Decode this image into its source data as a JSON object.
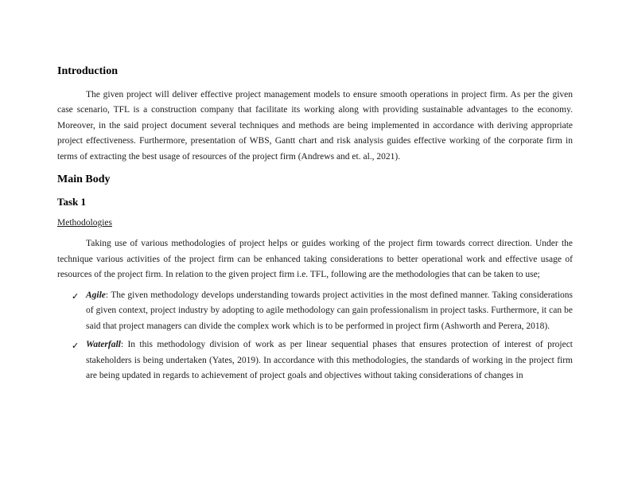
{
  "document": {
    "introduction": {
      "heading": "Introduction",
      "body": "The given project will deliver effective project management models to ensure smooth operations in project firm. As per the given case scenario, TFL is a construction company that facilitate its working along with providing sustainable advantages to the economy. Moreover, in the said project document several techniques and methods are being implemented in accordance with deriving appropriate project effectiveness. Furthermore, presentation of WBS, Gantt chart and risk analysis guides effective working of the corporate firm in terms of extracting the best usage of resources of the project firm (Andrews and et. al., 2021)."
    },
    "main_body": {
      "heading": "Main Body"
    },
    "task1": {
      "heading": "Task 1",
      "methodologies": {
        "title": "Methodologies",
        "intro": "Taking use of various methodologies of project helps or guides working of the project firm towards correct direction. Under the technique various activities of the project firm can be enhanced taking considerations to better operational work and effective usage of resources of the project firm. In relation to the given project firm i.e. TFL, following are the methodologies that can be taken to use;",
        "items": [
          {
            "name": "Agile",
            "text": ": The given methodology develops understanding towards project activities in the most defined manner. Taking considerations of given context, project industry by adopting to agile methodology can gain professionalism in project tasks. Furthermore, it can be said that project managers can divide the complex work which is to be performed in project firm (Ashworth and Perera, 2018)."
          },
          {
            "name": "Waterfall",
            "text": ": In this methodology division of work as per linear sequential phases that ensures protection of interest of project stakeholders is being undertaken (Yates, 2019). In accordance with this methodologies, the standards of working in the project firm are being updated in regards to achievement of project goals and objectives without taking considerations of changes in"
          }
        ]
      }
    },
    "styles": {
      "background_color": "#ffffff",
      "text_color": "#000000",
      "body_text_color": "#1a1a1a",
      "heading_fontsize": 14,
      "body_fontsize": 11.5,
      "font_family": "Times New Roman",
      "line_height": 1.7,
      "text_indent": 36,
      "bullet_marker": "✓"
    }
  }
}
